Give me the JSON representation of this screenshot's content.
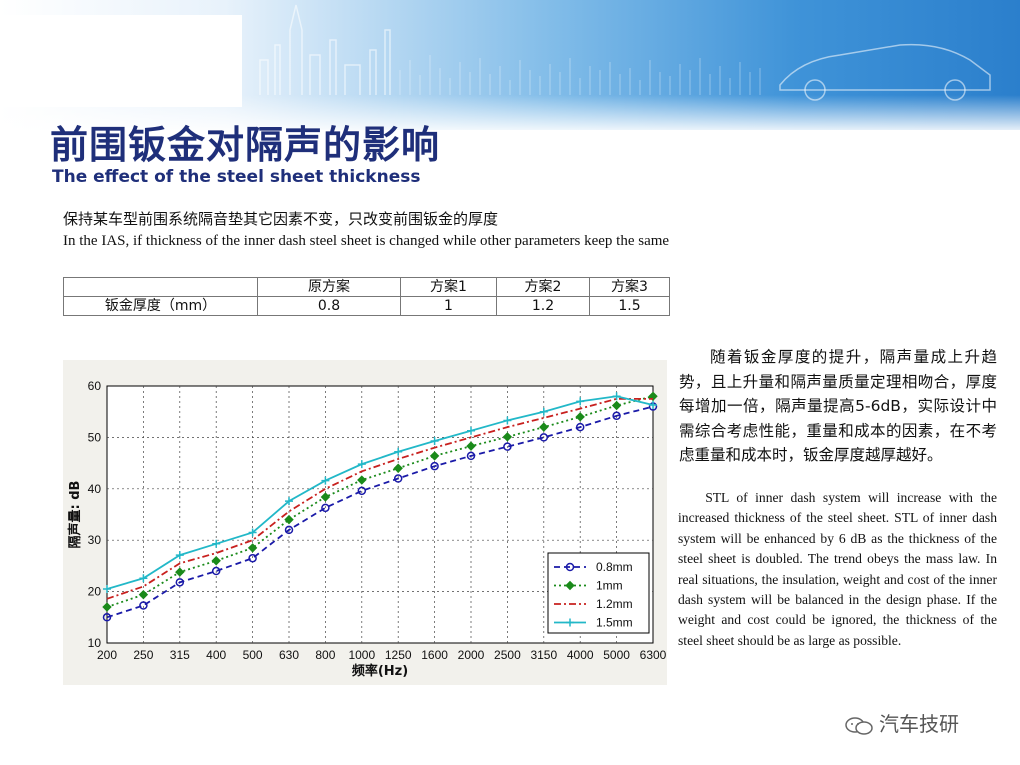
{
  "header": {
    "title_cn": "前围钣金对隔声的影响",
    "title_en": "The effect of the steel sheet thickness"
  },
  "intro": {
    "cn": "保持某车型前围系统隔音垫其它因素不变，只改变前围钣金的厚度",
    "en": "In the IAS, if thickness of the inner dash steel sheet is changed while other parameters keep the same"
  },
  "table": {
    "headers": [
      "",
      "原方案",
      "方案1",
      "方案2",
      "方案3"
    ],
    "row": {
      "label": "钣金厚度（mm）",
      "values": [
        "0.8",
        "1",
        "1.2",
        "1.5"
      ]
    }
  },
  "description": {
    "cn": "随着钣金厚度的提升，隔声量成上升趋势，且上升量和隔声量质量定理相吻合，厚度每增加一倍，隔声量提高5-6dB，实际设计中需综合考虑性能，重量和成本的因素，在不考虑重量和成本时，钣金厚度越厚越好。",
    "en": "STL of inner dash system will increase with the increased thickness of the steel sheet. STL of inner dash system will be enhanced by 6 dB as the thickness of the steel sheet is doubled. The trend obeys the mass law. In real situations, the insulation, weight and cost of the inner dash system will be balanced in the design phase. If the weight and cost could be ignored, the thickness of the steel sheet should be as large as possible."
  },
  "watermark": "汽车技研",
  "chart_data": {
    "type": "line",
    "title": "",
    "xlabel": "频率(Hz)",
    "ylabel": "隔声量: dB",
    "categories": [
      "200",
      "250",
      "315",
      "400",
      "500",
      "630",
      "800",
      "1000",
      "1250",
      "1600",
      "2000",
      "2500",
      "3150",
      "4000",
      "5000",
      "6300"
    ],
    "ylim": [
      10,
      60
    ],
    "yticks": [
      10,
      20,
      30,
      40,
      50,
      60
    ],
    "grid": true,
    "legend_position": "bottom-right",
    "series": [
      {
        "name": "0.8mm",
        "color": "#1a1aa8",
        "dash": "6,4",
        "marker": "circle",
        "values": [
          15,
          17.3,
          21.8,
          24,
          26.5,
          32,
          36.3,
          39.6,
          42,
          44.4,
          46.4,
          48.2,
          50,
          52,
          54.2,
          56
        ]
      },
      {
        "name": "1mm",
        "color": "#1a8a1a",
        "dash": "2,3",
        "marker": "diamond",
        "values": [
          17,
          19.4,
          23.8,
          26,
          28.5,
          34,
          38.4,
          41.7,
          44,
          46.4,
          48.3,
          50.1,
          52,
          54,
          56.2,
          58
        ]
      },
      {
        "name": "1.2mm",
        "color": "#c8201e",
        "dash": "7,3,2,3",
        "marker": "none",
        "values": [
          18.6,
          21,
          25.5,
          27.5,
          30,
          35.6,
          40,
          43.4,
          45.8,
          48,
          50,
          52,
          53.8,
          55.6,
          57.5,
          57.5
        ]
      },
      {
        "name": "1.5mm",
        "color": "#22b8c8",
        "dash": "",
        "marker": "plus",
        "values": [
          20.5,
          22.6,
          27.1,
          29.3,
          31.5,
          37.6,
          41.6,
          44.8,
          47.2,
          49.3,
          51.3,
          53.3,
          55,
          57,
          58,
          56.3
        ]
      }
    ]
  }
}
